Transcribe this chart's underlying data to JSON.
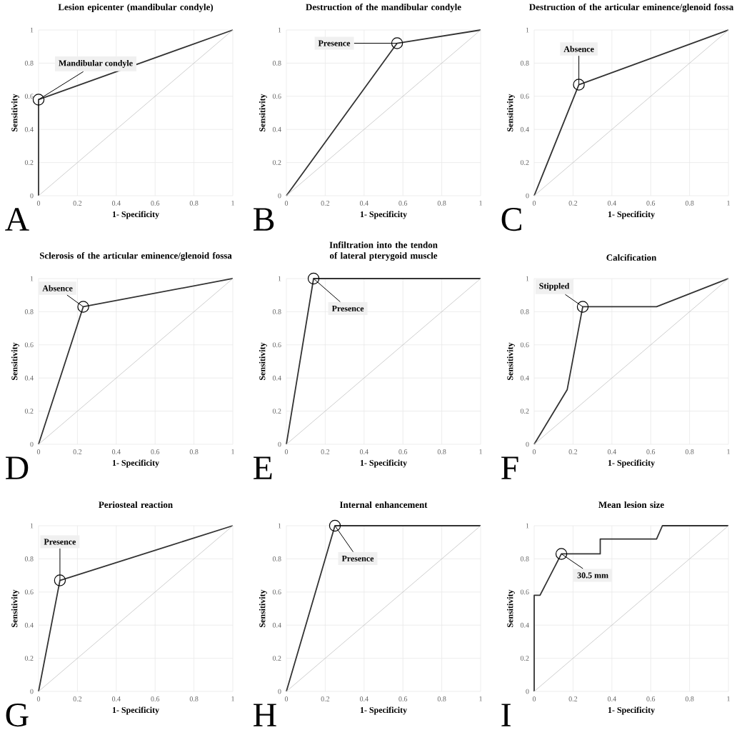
{
  "chart_data": [
    {
      "type": "line",
      "title": "Lesion epicenter (mandibular condyle)",
      "xlabel": "1- Specificity",
      "ylabel": "Sensitivity",
      "xlim": [
        0,
        1
      ],
      "ylim": [
        0,
        1
      ],
      "xticks": [
        0,
        0.2,
        0.4,
        0.6,
        0.8,
        1
      ],
      "yticks": [
        0,
        0.2,
        0.4,
        0.6,
        0.8,
        1
      ],
      "grid": true,
      "series": [
        {
          "color": "#333333",
          "x": [
            0,
            0,
            1
          ],
          "values": [
            0,
            0.58,
            1
          ]
        },
        {
          "color": "#c8c8c8",
          "x": [
            0,
            1
          ],
          "values": [
            0,
            1
          ]
        }
      ],
      "annotations": [
        {
          "text": "Mandibular condyle",
          "x": 0,
          "y": 0.58
        },
        "A"
      ]
    },
    {
      "type": "line",
      "title": "Destruction of the mandibular condyle",
      "xlabel": "1- Specificity",
      "ylabel": "Sensitivity",
      "xlim": [
        0,
        1
      ],
      "ylim": [
        0,
        1
      ],
      "xticks": [
        0,
        0.2,
        0.4,
        0.6,
        0.8,
        1
      ],
      "yticks": [
        0,
        0.2,
        0.4,
        0.6,
        0.8,
        1
      ],
      "grid": true,
      "series": [
        {
          "color": "#333333",
          "x": [
            0,
            0.57,
            1
          ],
          "values": [
            0,
            0.92,
            1
          ]
        },
        {
          "color": "#c8c8c8",
          "x": [
            0,
            1
          ],
          "values": [
            0,
            1
          ]
        }
      ],
      "annotations": [
        {
          "text": "Presence",
          "x": 0.57,
          "y": 0.92
        },
        "B"
      ]
    },
    {
      "type": "line",
      "title": "Destruction of the articular eminence/glenoid fossa",
      "xlabel": "1- Specificity",
      "ylabel": "Sensitivity",
      "xlim": [
        0,
        1
      ],
      "ylim": [
        0,
        1
      ],
      "xticks": [
        0,
        0.2,
        0.4,
        0.6,
        0.8,
        1
      ],
      "yticks": [
        0,
        0.2,
        0.4,
        0.6,
        0.8,
        1
      ],
      "grid": true,
      "series": [
        {
          "color": "#333333",
          "x": [
            0,
            0.23,
            1
          ],
          "values": [
            0,
            0.67,
            1
          ]
        },
        {
          "color": "#c8c8c8",
          "x": [
            0,
            1
          ],
          "values": [
            0,
            1
          ]
        }
      ],
      "annotations": [
        {
          "text": "Absence",
          "x": 0.23,
          "y": 0.67
        },
        "C"
      ]
    },
    {
      "type": "line",
      "title": "Sclerosis of the articular eminence/glenoid fossa",
      "xlabel": "1- Specificity",
      "ylabel": "Sensitivity",
      "xlim": [
        0,
        1
      ],
      "ylim": [
        0,
        1
      ],
      "xticks": [
        0,
        0.2,
        0.4,
        0.6,
        0.8,
        1
      ],
      "yticks": [
        0,
        0.2,
        0.4,
        0.6,
        0.8,
        1
      ],
      "grid": true,
      "series": [
        {
          "color": "#333333",
          "x": [
            0,
            0.23,
            1
          ],
          "values": [
            0,
            0.83,
            1
          ]
        },
        {
          "color": "#c8c8c8",
          "x": [
            0,
            1
          ],
          "values": [
            0,
            1
          ]
        }
      ],
      "annotations": [
        {
          "text": "Absence",
          "x": 0.23,
          "y": 0.83
        },
        "D"
      ]
    },
    {
      "type": "line",
      "title": "Infiltration into the tendon of lateral pterygoid muscle",
      "xlabel": "1- Specificity",
      "ylabel": "Sensitivity",
      "xlim": [
        0,
        1
      ],
      "ylim": [
        0,
        1
      ],
      "xticks": [
        0,
        0.2,
        0.4,
        0.6,
        0.8,
        1
      ],
      "yticks": [
        0,
        0.2,
        0.4,
        0.6,
        0.8,
        1
      ],
      "grid": true,
      "series": [
        {
          "color": "#333333",
          "x": [
            0,
            0.14,
            1
          ],
          "values": [
            0,
            1,
            1
          ]
        },
        {
          "color": "#c8c8c8",
          "x": [
            0,
            1
          ],
          "values": [
            0,
            1
          ]
        }
      ],
      "annotations": [
        {
          "text": "Presence",
          "x": 0.14,
          "y": 1
        },
        "E"
      ]
    },
    {
      "type": "line",
      "title": "Calcification",
      "xlabel": "1- Specificity",
      "ylabel": "Sensitivity",
      "xlim": [
        0,
        1
      ],
      "ylim": [
        0,
        1
      ],
      "xticks": [
        0,
        0.2,
        0.4,
        0.6,
        0.8,
        1
      ],
      "yticks": [
        0,
        0.2,
        0.4,
        0.6,
        0.8,
        1
      ],
      "grid": true,
      "series": [
        {
          "color": "#333333",
          "x": [
            0,
            0.17,
            0.25,
            0.63,
            1
          ],
          "values": [
            0,
            0.33,
            0.83,
            0.83,
            1
          ]
        },
        {
          "color": "#c8c8c8",
          "x": [
            0,
            1
          ],
          "values": [
            0,
            1
          ]
        }
      ],
      "annotations": [
        {
          "text": "Stippled",
          "x": 0.25,
          "y": 0.83
        },
        "F"
      ]
    },
    {
      "type": "line",
      "title": "Periosteal reaction",
      "xlabel": "1- Specificity",
      "ylabel": "Sensitivity",
      "xlim": [
        0,
        1
      ],
      "ylim": [
        0,
        1
      ],
      "xticks": [
        0,
        0.2,
        0.4,
        0.6,
        0.8,
        1
      ],
      "yticks": [
        0,
        0.2,
        0.4,
        0.6,
        0.8,
        1
      ],
      "grid": true,
      "series": [
        {
          "color": "#333333",
          "x": [
            0,
            0.11,
            1
          ],
          "values": [
            0,
            0.67,
            1
          ]
        },
        {
          "color": "#c8c8c8",
          "x": [
            0,
            1
          ],
          "values": [
            0,
            1
          ]
        }
      ],
      "annotations": [
        {
          "text": "Presence",
          "x": 0.11,
          "y": 0.67
        },
        "G"
      ]
    },
    {
      "type": "line",
      "title": "Internal enhancement",
      "xlabel": "1- Specificity",
      "ylabel": "Sensitivity",
      "xlim": [
        0,
        1
      ],
      "ylim": [
        0,
        1
      ],
      "xticks": [
        0,
        0.2,
        0.4,
        0.6,
        0.8,
        1
      ],
      "yticks": [
        0,
        0.2,
        0.4,
        0.6,
        0.8,
        1
      ],
      "grid": true,
      "series": [
        {
          "color": "#333333",
          "x": [
            0,
            0.25,
            1
          ],
          "values": [
            0,
            1,
            1
          ]
        },
        {
          "color": "#c8c8c8",
          "x": [
            0,
            1
          ],
          "values": [
            0,
            1
          ]
        }
      ],
      "annotations": [
        {
          "text": "Presence",
          "x": 0.25,
          "y": 1
        },
        "H"
      ]
    },
    {
      "type": "line",
      "title": "Mean lesion size",
      "xlabel": "1- Specificity",
      "ylabel": "Sensitivity",
      "xlim": [
        0,
        1
      ],
      "ylim": [
        0,
        1
      ],
      "xticks": [
        0,
        0.2,
        0.4,
        0.6,
        0.8,
        1
      ],
      "yticks": [
        0,
        0.2,
        0.4,
        0.6,
        0.8,
        1
      ],
      "grid": true,
      "series": [
        {
          "color": "#333333",
          "x": [
            0,
            0,
            0.03,
            0.14,
            0.34,
            0.34,
            0.63,
            0.66,
            1
          ],
          "values": [
            0,
            0.58,
            0.58,
            0.83,
            0.83,
            0.92,
            0.92,
            1,
            1
          ]
        },
        {
          "color": "#c8c8c8",
          "x": [
            0,
            1
          ],
          "values": [
            0,
            1
          ]
        }
      ],
      "annotations": [
        {
          "text": "30.5 mm",
          "x": 0.14,
          "y": 0.83
        },
        "I"
      ]
    }
  ]
}
